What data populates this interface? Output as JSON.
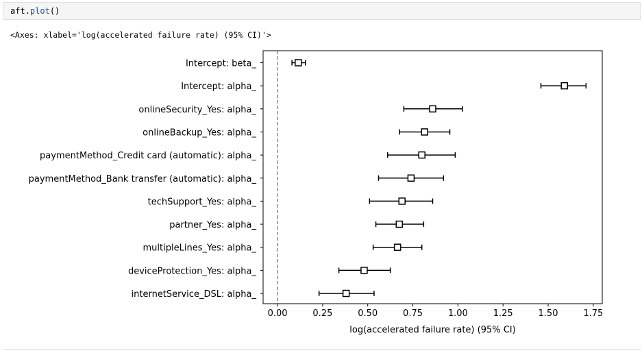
{
  "input_cell": {
    "code_obj": "aft",
    "code_dot": ".",
    "code_fn": "plot",
    "code_parens": "()"
  },
  "output_cell": {
    "repr_text": "<Axes: xlabel='log(accelerated failure rate) (95% CI)'>"
  },
  "chart_data": {
    "type": "scatter",
    "title": "",
    "xlabel": "log(accelerated failure rate) (95% CI)",
    "ylabel": "",
    "xlim": [
      -0.08,
      1.8
    ],
    "xticks": [
      0.0,
      0.25,
      0.5,
      0.75,
      1.0,
      1.25,
      1.5,
      1.75
    ],
    "xtick_labels": [
      "0.00",
      "0.25",
      "0.50",
      "0.75",
      "1.00",
      "1.25",
      "1.50",
      "1.75"
    ],
    "reference_line_x": 0.0,
    "grid": false,
    "marker": "open-square",
    "categories": [
      "Intercept: beta_",
      "Intercept: alpha_",
      "onlineSecurity_Yes: alpha_",
      "onlineBackup_Yes: alpha_",
      "paymentMethod_Credit card (automatic): alpha_",
      "paymentMethod_Bank transfer (automatic): alpha_",
      "techSupport_Yes: alpha_",
      "partner_Yes: alpha_",
      "multipleLines_Yes: alpha_",
      "deviceProtection_Yes: alpha_",
      "internetService_DSL: alpha_"
    ],
    "estimates": [
      0.115,
      1.59,
      0.86,
      0.815,
      0.8,
      0.74,
      0.69,
      0.675,
      0.665,
      0.48,
      0.38
    ],
    "ci_lower": [
      0.08,
      1.46,
      0.7,
      0.675,
      0.61,
      0.56,
      0.51,
      0.545,
      0.53,
      0.34,
      0.23
    ],
    "ci_upper": [
      0.155,
      1.71,
      1.025,
      0.955,
      0.985,
      0.92,
      0.86,
      0.81,
      0.8,
      0.625,
      0.535
    ]
  }
}
